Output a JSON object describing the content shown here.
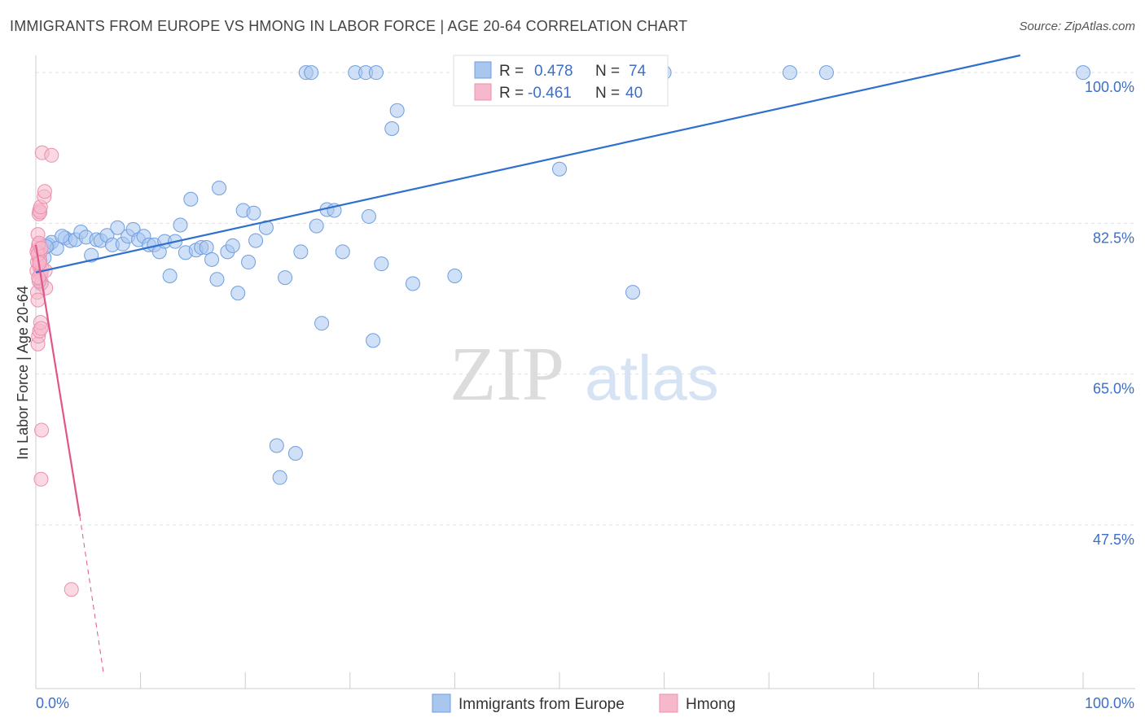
{
  "header": {
    "title": "IMMIGRANTS FROM EUROPE VS HMONG IN LABOR FORCE | AGE 20-64 CORRELATION CHART",
    "source": "Source: ZipAtlas.com"
  },
  "watermark": {
    "zip": "ZIP",
    "atlas": "atlas"
  },
  "colors": {
    "blue_fill": "#a9c6ef",
    "blue_stroke": "#6f9ee0",
    "blue_line": "#2f6fce",
    "pink_fill": "#f6b9cc",
    "pink_stroke": "#ec8fae",
    "pink_line": "#e0568a",
    "tick_text": "#3d6fc7",
    "grid": "#e3e3e3"
  },
  "legend": {
    "r_label": "R =",
    "n_label": "N =",
    "rows": [
      {
        "r": "0.478",
        "n": "74"
      },
      {
        "r": "-0.461",
        "n": "40"
      }
    ]
  },
  "chart_data": {
    "type": "scatter",
    "title": "IMMIGRANTS FROM EUROPE VS HMONG IN LABOR FORCE | AGE 20-64 CORRELATION CHART",
    "xlabel": "",
    "ylabel": "In Labor Force | Age 20-64",
    "xlim": [
      0,
      100
    ],
    "ylim": [
      28.5,
      102
    ],
    "x_tick_labels": [
      "0.0%",
      "100.0%"
    ],
    "y_ticks": [
      47.5,
      65.0,
      82.5,
      100.0
    ],
    "y_tick_labels": [
      "47.5%",
      "65.0%",
      "82.5%",
      "100.0%"
    ],
    "legend_position": "bottom",
    "series": [
      {
        "name": "Immigrants from Europe",
        "r": 0.478,
        "n": 74,
        "trend": {
          "x": [
            0.0,
            94.0
          ],
          "y": [
            76.8,
            102.0
          ],
          "dashed_extension": false
        },
        "points": [
          [
            0.5,
            75.5
          ],
          [
            0.8,
            78.5
          ],
          [
            1.2,
            80.0
          ],
          [
            1.5,
            80.3
          ],
          [
            2.0,
            79.6
          ],
          [
            2.8,
            80.8
          ],
          [
            3.3,
            80.5
          ],
          [
            3.8,
            80.6
          ],
          [
            4.3,
            81.5
          ],
          [
            4.8,
            80.9
          ],
          [
            5.3,
            78.8
          ],
          [
            5.8,
            80.6
          ],
          [
            6.2,
            80.5
          ],
          [
            6.8,
            81.1
          ],
          [
            7.3,
            80.0
          ],
          [
            7.8,
            82.0
          ],
          [
            8.3,
            80.1
          ],
          [
            8.8,
            81.0
          ],
          [
            9.3,
            81.8
          ],
          [
            9.8,
            80.6
          ],
          [
            10.3,
            81.0
          ],
          [
            10.8,
            80.0
          ],
          [
            11.3,
            80.0
          ],
          [
            11.8,
            79.2
          ],
          [
            12.3,
            80.4
          ],
          [
            12.8,
            76.4
          ],
          [
            13.3,
            80.4
          ],
          [
            13.8,
            82.3
          ],
          [
            14.3,
            79.1
          ],
          [
            14.8,
            85.3
          ],
          [
            15.3,
            79.4
          ],
          [
            15.8,
            79.7
          ],
          [
            16.3,
            79.7
          ],
          [
            16.8,
            78.3
          ],
          [
            17.3,
            76.0
          ],
          [
            17.5,
            86.6
          ],
          [
            18.3,
            79.2
          ],
          [
            18.8,
            79.9
          ],
          [
            19.3,
            74.4
          ],
          [
            19.8,
            84.0
          ],
          [
            20.3,
            78.0
          ],
          [
            20.8,
            83.7
          ],
          [
            21.0,
            80.5
          ],
          [
            22.0,
            82.0
          ],
          [
            23.0,
            56.7
          ],
          [
            23.3,
            53.0
          ],
          [
            23.8,
            76.2
          ],
          [
            24.8,
            55.8
          ],
          [
            25.3,
            79.2
          ],
          [
            25.8,
            100.0
          ],
          [
            26.3,
            100.0
          ],
          [
            26.8,
            82.2
          ],
          [
            27.3,
            70.9
          ],
          [
            27.8,
            84.1
          ],
          [
            28.5,
            84.0
          ],
          [
            29.3,
            79.2
          ],
          [
            30.5,
            100.0
          ],
          [
            31.5,
            100.0
          ],
          [
            31.8,
            83.3
          ],
          [
            32.5,
            100.0
          ],
          [
            32.2,
            68.9
          ],
          [
            33.0,
            77.8
          ],
          [
            34.0,
            93.5
          ],
          [
            34.5,
            95.6
          ],
          [
            36.0,
            75.5
          ],
          [
            40.0,
            76.4
          ],
          [
            50.0,
            88.8
          ],
          [
            57.0,
            74.5
          ],
          [
            60.0,
            100.0
          ],
          [
            72.0,
            100.0
          ],
          [
            75.5,
            100.0
          ],
          [
            100.0,
            100.0
          ],
          [
            1.0,
            79.8
          ],
          [
            2.5,
            81.0
          ]
        ]
      },
      {
        "name": "Hmong",
        "r": -0.461,
        "n": 40,
        "trend": {
          "x": [
            0.0,
            4.2
          ],
          "y": [
            80.0,
            48.5
          ],
          "dashed_extension": {
            "x": [
              4.2,
              6.5
            ],
            "y": [
              48.5,
              30.0
            ]
          }
        },
        "points": [
          [
            0.1,
            77.0
          ],
          [
            0.15,
            78.0
          ],
          [
            0.2,
            79.5
          ],
          [
            0.25,
            80.0
          ],
          [
            0.3,
            78.5
          ],
          [
            0.35,
            77.5
          ],
          [
            0.4,
            79.0
          ],
          [
            0.45,
            76.5
          ],
          [
            0.2,
            81.2
          ],
          [
            0.3,
            83.6
          ],
          [
            0.35,
            84.0
          ],
          [
            0.4,
            83.8
          ],
          [
            0.45,
            84.4
          ],
          [
            0.5,
            76.8
          ],
          [
            0.55,
            75.6
          ],
          [
            0.6,
            77.2
          ],
          [
            0.2,
            68.5
          ],
          [
            0.25,
            69.4
          ],
          [
            0.35,
            70.0
          ],
          [
            0.45,
            71.0
          ],
          [
            0.5,
            70.3
          ],
          [
            0.55,
            58.5
          ],
          [
            0.5,
            52.8
          ],
          [
            0.6,
            90.7
          ],
          [
            1.5,
            90.4
          ],
          [
            0.8,
            85.6
          ],
          [
            0.85,
            86.2
          ],
          [
            0.9,
            77.0
          ],
          [
            0.95,
            75.0
          ],
          [
            3.4,
            40.0
          ],
          [
            0.15,
            74.5
          ],
          [
            0.2,
            73.6
          ],
          [
            0.3,
            75.8
          ],
          [
            0.1,
            79.2
          ],
          [
            0.4,
            78.2
          ],
          [
            0.2,
            78.9
          ],
          [
            0.3,
            80.2
          ],
          [
            0.5,
            79.6
          ],
          [
            0.25,
            76.2
          ],
          [
            0.35,
            77.9
          ]
        ]
      }
    ]
  }
}
